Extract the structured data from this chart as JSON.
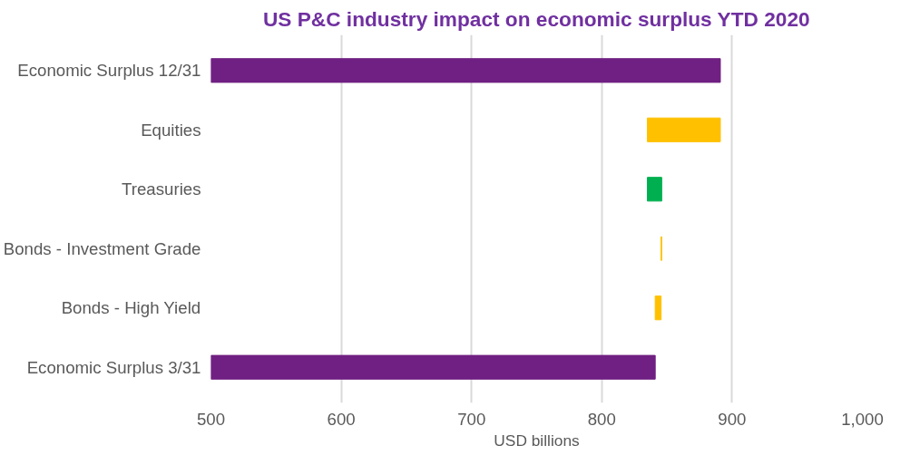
{
  "chart_data": {
    "type": "bar",
    "orientation": "horizontal",
    "title": "US P&C industry impact on economic surplus YTD 2020",
    "xlabel": "USD billions",
    "categories": [
      "Economic Surplus 12/31",
      "Equities",
      "Treasuries",
      "Bonds - Investment Grade",
      "Bonds - High Yield",
      "Economic Surplus 3/31"
    ],
    "values": [
      891,
      -56,
      11,
      -0.5,
      -4.5,
      841
    ],
    "base": [
      null,
      891,
      835,
      846,
      845.5,
      null
    ],
    "colors": [
      "#702082",
      "#ffc000",
      "#00b050",
      "#ffc000",
      "#ffc000",
      "#702082"
    ],
    "xlim": [
      500,
      1000
    ],
    "xticks": [
      500,
      600,
      700,
      800,
      900,
      {
        "value": 1000,
        "label": "1,000"
      }
    ],
    "grid": "x"
  }
}
